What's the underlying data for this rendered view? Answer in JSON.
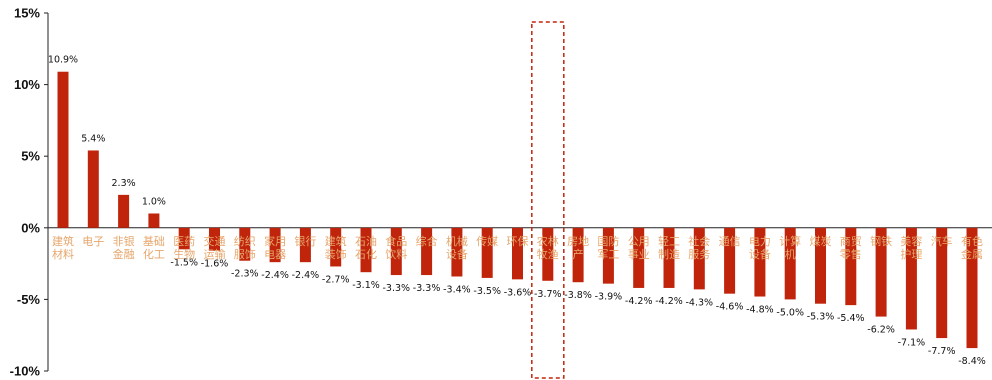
{
  "chart_data": {
    "type": "bar",
    "categories": [
      "建筑材料",
      "电子",
      "非银金融",
      "基础化工",
      "医药生物",
      "交通运输",
      "纺织服饰",
      "家用电器",
      "银行",
      "建筑装饰",
      "石油石化",
      "食品饮料",
      "综合",
      "机械设备",
      "传媒",
      "环保",
      "农林牧渔",
      "房地产",
      "国防军工",
      "公用事业",
      "轻工制造",
      "社会服务",
      "通信",
      "电力设备",
      "计算机",
      "煤炭",
      "商贸零售",
      "钢铁",
      "美容护理",
      "汽车",
      "有色金属"
    ],
    "values": [
      10.9,
      5.4,
      2.3,
      1.0,
      -1.5,
      -1.6,
      -2.3,
      -2.4,
      -2.4,
      -2.7,
      -3.1,
      -3.3,
      -3.3,
      -3.4,
      -3.5,
      -3.6,
      -3.7,
      -3.8,
      -3.9,
      -4.2,
      -4.2,
      -4.3,
      -4.6,
      -4.8,
      -5.0,
      -5.3,
      -5.4,
      -6.2,
      -7.1,
      -7.7,
      -8.4
    ],
    "value_labels": [
      "10.9%",
      "5.4%",
      "2.3%",
      "1.0%",
      "-1.5%",
      "-1.6%",
      "-2.3%",
      "-2.4%",
      "-2.4%",
      "-2.7%",
      "-3.1%",
      "-3.3%",
      "-3.3%",
      "-3.4%",
      "-3.5%",
      "-3.6%",
      "-3.7%",
      "-3.8%",
      "-3.9%",
      "-4.2%",
      "-4.2%",
      "-4.3%",
      "-4.6%",
      "-4.8%",
      "-5.0%",
      "-5.3%",
      "-5.4%",
      "-6.2%",
      "-7.1%",
      "-7.7%",
      "-8.4%"
    ],
    "y_ticks": [
      15,
      10,
      5,
      0,
      -5,
      -10
    ],
    "y_tick_labels": [
      "15%",
      "10%",
      "5%",
      "0%",
      "-5%",
      "-10%"
    ],
    "ylim": [
      -10,
      15
    ],
    "grid": false,
    "legend": "none",
    "highlighted_category": "农林牧渔",
    "bar_color": "#c0250c",
    "highlight_box_color": "#c0250c",
    "category_label_color": "#e6a66b",
    "title": "",
    "xlabel": "",
    "ylabel": ""
  }
}
